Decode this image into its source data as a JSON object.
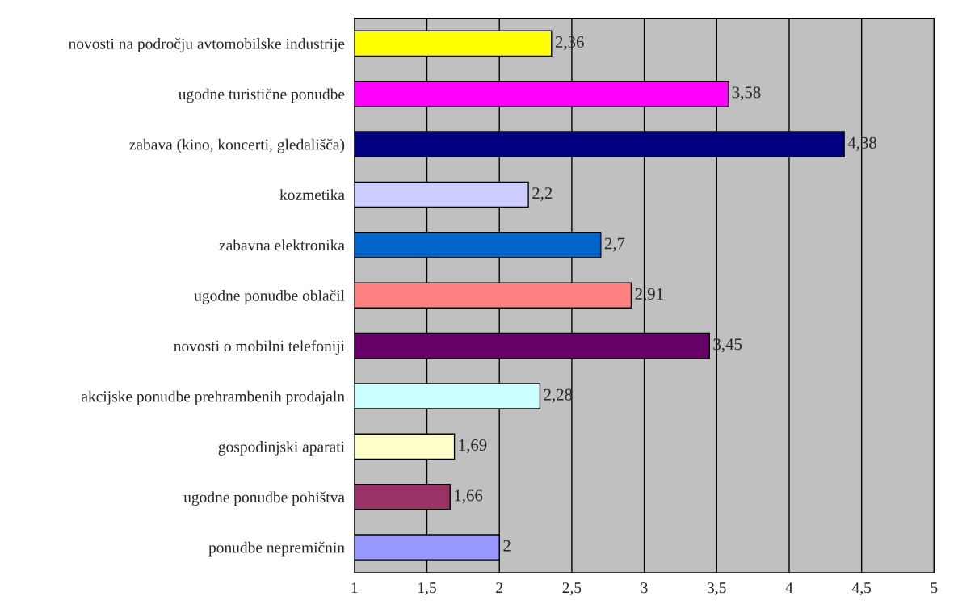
{
  "chart_data": {
    "type": "bar",
    "orientation": "horizontal",
    "categories": [
      "novosti na področju avtomobilske industrije",
      "ugodne turistične ponudbe",
      "zabava (kino, koncerti, gledališča)",
      "kozmetika",
      "zabavna elektronika",
      "ugodne ponudbe oblačil",
      "novosti o mobilni telefoniji",
      "akcijske ponudbe prehrambenih prodajaln",
      "gospodinjski aparati",
      "ugodne ponudbe pohištva",
      "ponudbe nepremičnin"
    ],
    "values": [
      2.36,
      3.58,
      4.38,
      2.2,
      2.7,
      2.91,
      3.45,
      2.28,
      1.69,
      1.66,
      2
    ],
    "value_labels": [
      "2,36",
      "3,58",
      "4,38",
      "2,2",
      "2,7",
      "2,91",
      "3,45",
      "2,28",
      "1,69",
      "1,66",
      "2"
    ],
    "colors": [
      "#ffff00",
      "#ff00ff",
      "#000080",
      "#ccccff",
      "#0066cc",
      "#ff8080",
      "#660066",
      "#ccffff",
      "#ffffcc",
      "#993366",
      "#9999ff"
    ],
    "xlim": [
      1,
      5
    ],
    "xticks": [
      1,
      {
        "value": 1.5,
        "label": "1,5"
      },
      2,
      {
        "value": 2.5,
        "label": "2,5"
      },
      3,
      {
        "value": 3.5,
        "label": "3,5"
      },
      4,
      {
        "value": 4.5,
        "label": "4,5"
      },
      5
    ],
    "grid": "x",
    "legend": false
  }
}
